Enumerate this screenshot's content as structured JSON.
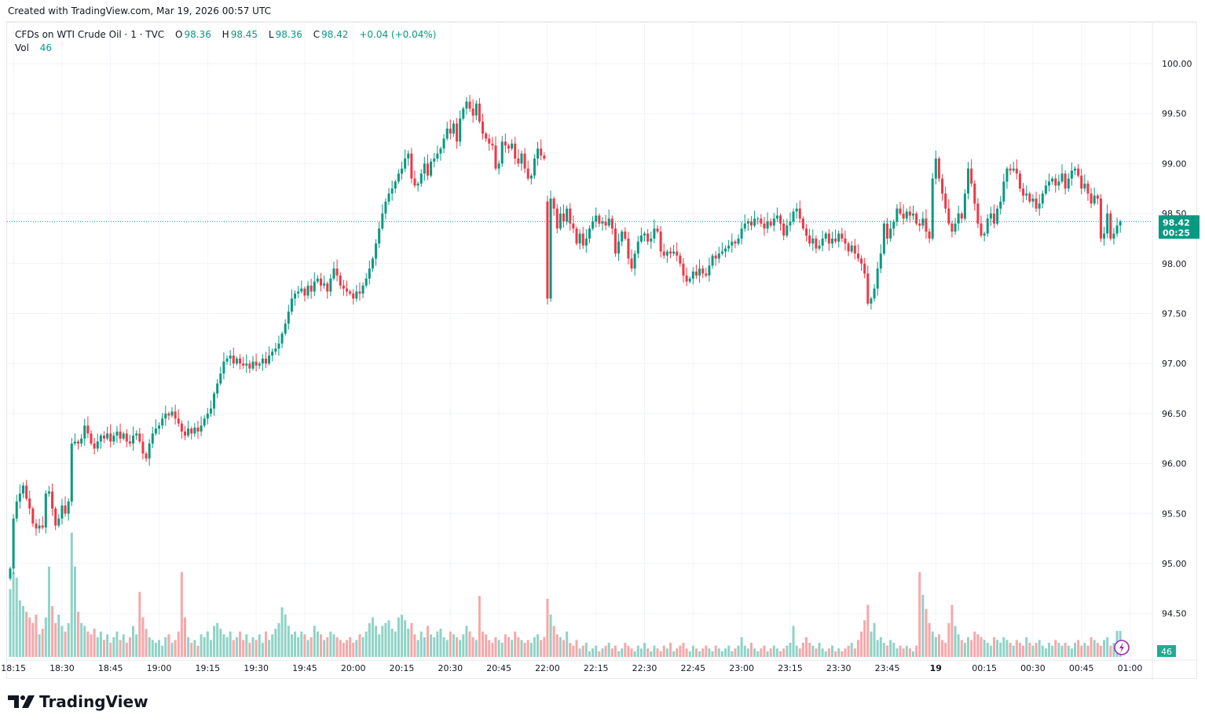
{
  "watermark": "Created with TradingView.com, Mar 19, 2026 00:57 UTC",
  "legend": {
    "symbol": "CFDs on WTI Crude Oil · 1 · TVC",
    "o_label": "O",
    "o": "98.36",
    "h_label": "H",
    "h": "98.45",
    "l_label": "L",
    "l": "98.36",
    "c_label": "C",
    "c": "98.42",
    "change": "+0.04 (+0.04%)",
    "vol_label": "Vol",
    "vol": "46"
  },
  "price_label": {
    "price": "98.42",
    "countdown": "00:25"
  },
  "volume_label": "46",
  "logo_text": "TradingView",
  "colors": {
    "up": "#089981",
    "down": "#f23645",
    "vol_up": "#8fd3c7",
    "vol_down": "#f7a7a9",
    "accent": "#089981"
  },
  "chart_data": {
    "type": "candlestick",
    "title": "CFDs on WTI Crude Oil · 1 · TVC",
    "interval": "1 minute",
    "ylim": [
      94.3,
      100.4
    ],
    "y_ticks": [
      "100.00",
      "99.50",
      "99.00",
      "98.50",
      "98.00",
      "97.50",
      "97.00",
      "96.50",
      "96.00",
      "95.50",
      "95.00",
      "94.50"
    ],
    "x_ticks": [
      "18:15",
      "18:30",
      "18:45",
      "19:00",
      "19:15",
      "19:30",
      "19:45",
      "20:00",
      "20:15",
      "20:30",
      "20:45",
      "22:00",
      "22:15",
      "22:30",
      "22:45",
      "23:00",
      "23:15",
      "23:30",
      "23:45",
      "19",
      "00:15",
      "00:30",
      "00:45",
      "01:00"
    ],
    "segments": [
      {
        "start": "18:14",
        "first_open": 94.85,
        "close": [
          94.95,
          95.45,
          95.62,
          95.7,
          95.78,
          95.65,
          95.55,
          95.4,
          95.35,
          95.38,
          95.36,
          95.7,
          95.72,
          95.55,
          95.38,
          95.45,
          95.58,
          95.5,
          95.62,
          96.2,
          96.22,
          96.2,
          96.25,
          96.38,
          96.3,
          96.2,
          96.15,
          96.22,
          96.28,
          96.25,
          96.3,
          96.22,
          96.28,
          96.32,
          96.25,
          96.3,
          96.22,
          96.2,
          96.28,
          96.3,
          96.22,
          96.1,
          96.05,
          96.2,
          96.3,
          96.35,
          96.38,
          96.45,
          96.5,
          96.48,
          96.52,
          96.45,
          96.4,
          96.32,
          96.28,
          96.35,
          96.3,
          96.36,
          96.32,
          96.38,
          96.45,
          96.5,
          96.55,
          96.7,
          96.8,
          96.9,
          97.02,
          97.05,
          97.08,
          97.0,
          97.05,
          97.0,
          96.98,
          97.0,
          96.95,
          97.02,
          96.98,
          97.0,
          97.05,
          97.0,
          97.08,
          97.12,
          97.15,
          97.2,
          97.3,
          97.4,
          97.52,
          97.65,
          97.7,
          97.72,
          97.75,
          97.68,
          97.78,
          97.72,
          97.82,
          97.85,
          97.78,
          97.8,
          97.72,
          97.85,
          97.95,
          97.88,
          97.78,
          97.75,
          97.72,
          97.7,
          97.65,
          97.72,
          97.7,
          97.78,
          97.85,
          97.95,
          98.05,
          98.2,
          98.35,
          98.5,
          98.62,
          98.7,
          98.75,
          98.82,
          98.9,
          98.95,
          99.05,
          99.1,
          98.85,
          98.78,
          98.8,
          98.9,
          99.0,
          98.88,
          99.02,
          99.05,
          99.1,
          99.15,
          99.25,
          99.35,
          99.3,
          99.4,
          99.22,
          99.45,
          99.55,
          99.62,
          99.55,
          99.48,
          99.6,
          99.42,
          99.3,
          99.25,
          99.2,
          99.18,
          98.95,
          99.0,
          99.22,
          99.18,
          99.15,
          99.2,
          99.05,
          99.0,
          99.1,
          98.95,
          98.85,
          98.88,
          99.05,
          99.15,
          99.08,
          99.05
        ],
        "volume": [
          120,
          150,
          140,
          100,
          90,
          80,
          70,
          60,
          75,
          40,
          50,
          70,
          160,
          90,
          60,
          75,
          55,
          45,
          60,
          220,
          160,
          80,
          60,
          55,
          45,
          40,
          50,
          35,
          45,
          30,
          40,
          25,
          35,
          45,
          30,
          40,
          25,
          35,
          55,
          40,
          115,
          70,
          50,
          35,
          30,
          25,
          30,
          20,
          35,
          40,
          25,
          30,
          45,
          150,
          70,
          35,
          25,
          30,
          20,
          40,
          35,
          45,
          30,
          55,
          60,
          50,
          40,
          35,
          45,
          30,
          35,
          45,
          30,
          40,
          25,
          35,
          30,
          40,
          25,
          45,
          30,
          40,
          50,
          60,
          88,
          75,
          55,
          40,
          45,
          35,
          45,
          40,
          30,
          35,
          55,
          45,
          40,
          30,
          35,
          45,
          40,
          35,
          30,
          25,
          30,
          35,
          25,
          30,
          40,
          35,
          45,
          60,
          70,
          55,
          40,
          55,
          60,
          65,
          50,
          45,
          70,
          75,
          65,
          50,
          60,
          40,
          30,
          45,
          35,
          55,
          40,
          35,
          45,
          50,
          35,
          30,
          45,
          40,
          35,
          30,
          40,
          55,
          45,
          35,
          30,
          108,
          45,
          40,
          30,
          25,
          35,
          30,
          25,
          40,
          35,
          30,
          45,
          35,
          30,
          25,
          30,
          25,
          35,
          40,
          30,
          35
        ]
      },
      {
        "start": "22:00",
        "first_open": 98.62,
        "close": [
          97.65,
          98.65,
          98.55,
          98.35,
          98.5,
          98.42,
          98.55,
          98.4,
          98.35,
          98.2,
          98.3,
          98.18,
          98.25,
          98.35,
          98.42,
          98.48,
          98.4,
          98.42,
          98.38,
          98.45,
          98.35,
          98.1,
          98.22,
          98.32,
          98.25,
          98.05,
          97.95,
          98.1,
          98.22,
          98.28,
          98.3,
          98.22,
          98.25,
          98.35,
          98.32,
          98.12,
          98.08,
          98.12,
          98.1,
          98.12,
          98.08,
          98.0,
          97.88,
          97.82,
          97.85,
          97.92,
          97.88,
          97.95,
          97.9,
          97.88,
          97.98,
          98.08,
          98.05,
          98.1,
          98.12,
          98.15,
          98.18,
          98.22,
          98.2,
          98.25,
          98.35,
          98.4,
          98.42,
          98.38,
          98.45,
          98.45,
          98.4,
          98.35,
          98.42,
          98.38,
          98.45,
          98.48,
          98.4,
          98.28,
          98.38,
          98.42,
          98.52,
          98.55,
          98.45,
          98.35,
          98.28,
          98.2,
          98.25,
          98.15,
          98.18,
          98.25,
          98.3,
          98.2,
          98.25,
          98.22,
          98.3,
          98.25,
          98.2,
          98.12,
          98.18,
          98.1,
          98.05,
          98.0,
          97.9,
          97.6,
          97.65,
          97.75,
          97.95,
          98.1,
          98.4,
          98.25,
          98.35,
          98.42,
          98.55,
          98.5,
          98.45,
          98.52,
          98.48,
          98.5,
          98.4,
          98.38,
          98.45,
          98.32,
          98.25,
          98.85,
          99.05,
          98.85,
          98.7,
          98.55,
          98.4,
          98.32,
          98.4,
          98.5,
          98.45,
          98.7,
          98.95,
          98.8,
          98.6,
          98.4,
          98.28,
          98.3,
          98.45,
          98.5,
          98.4,
          98.55,
          98.62,
          98.82,
          98.95,
          98.93,
          98.95,
          98.9,
          98.75,
          98.68,
          98.7,
          98.62,
          98.65,
          98.55,
          98.6,
          98.7,
          98.78,
          98.82,
          98.85,
          98.78,
          98.82,
          98.9,
          98.75,
          98.85,
          98.93,
          98.95,
          98.88,
          98.75,
          98.8,
          98.7,
          98.6,
          98.68,
          98.65,
          98.25,
          98.3,
          98.5,
          98.25,
          98.3,
          98.38,
          98.42
        ],
        "volume": [
          103,
          75,
          55,
          40,
          35,
          30,
          45,
          25,
          20,
          30,
          15,
          20,
          25,
          10,
          15,
          20,
          10,
          15,
          20,
          25,
          15,
          20,
          10,
          15,
          25,
          20,
          15,
          10,
          20,
          15,
          25,
          15,
          10,
          20,
          15,
          10,
          20,
          15,
          25,
          10,
          15,
          20,
          25,
          15,
          10,
          20,
          15,
          10,
          15,
          20,
          15,
          10,
          20,
          15,
          10,
          15,
          20,
          10,
          15,
          20,
          35,
          20,
          15,
          25,
          15,
          10,
          15,
          20,
          10,
          15,
          20,
          15,
          10,
          15,
          20,
          25,
          55,
          20,
          15,
          25,
          35,
          25,
          20,
          15,
          25,
          15,
          10,
          15,
          20,
          10,
          15,
          10,
          15,
          20,
          25,
          15,
          30,
          45,
          65,
          92,
          45,
          60,
          30,
          35,
          25,
          20,
          30,
          25,
          15,
          20,
          15,
          20,
          15,
          10,
          20,
          150,
          110,
          85,
          60,
          45,
          35,
          40,
          30,
          25,
          60,
          92,
          55,
          40,
          30,
          25,
          35,
          30,
          45,
          40,
          35,
          30,
          25,
          20,
          35,
          30,
          25,
          35,
          30,
          25,
          20,
          30,
          25,
          20,
          35,
          25,
          20,
          25,
          30,
          20,
          15,
          25,
          20,
          30,
          25,
          20,
          25,
          20,
          15,
          25,
          30,
          20,
          25,
          20,
          35,
          30,
          25,
          20,
          30,
          35,
          20,
          25,
          46,
          46
        ]
      }
    ],
    "last_price": 98.42
  }
}
